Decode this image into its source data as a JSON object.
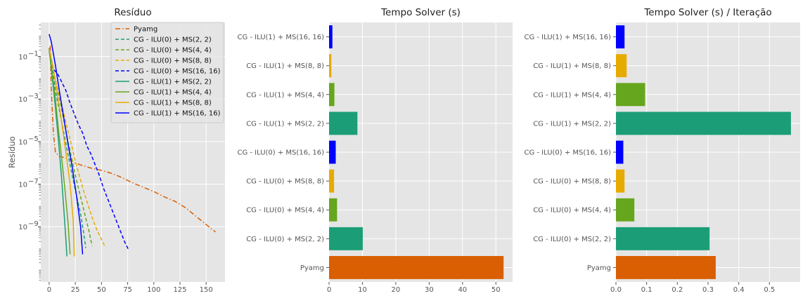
{
  "chart_data": [
    {
      "type": "line",
      "title": "Resíduo",
      "ylabel": "Resíduo",
      "xlabel": "",
      "yscale": "log",
      "xlim": [
        -8,
        168
      ],
      "ylim_log10": [
        -11.6,
        0.6
      ],
      "xticks": [
        0,
        25,
        50,
        75,
        100,
        125,
        150
      ],
      "ytick_labels": [
        {
          "exp": -1,
          "label": "10",
          "sup": "−1"
        },
        {
          "exp": -3,
          "label": "10",
          "sup": "−3"
        },
        {
          "exp": -5,
          "label": "10",
          "sup": "−5"
        },
        {
          "exp": -7,
          "label": "10",
          "sup": "−7"
        },
        {
          "exp": -9,
          "label": "10",
          "sup": "−9"
        }
      ],
      "legend_position": "top-right",
      "series": [
        {
          "name": "Pyamg",
          "color": "#d95f02",
          "dash": "dashdot",
          "points": [
            [
              1,
              -0.5
            ],
            [
              2,
              -2.5
            ],
            [
              4,
              -4.6
            ],
            [
              6,
              -5.5
            ],
            [
              10,
              -5.7
            ],
            [
              15,
              -5.75
            ],
            [
              20,
              -5.85
            ],
            [
              25,
              -6.0
            ],
            [
              30,
              -6.1
            ],
            [
              40,
              -6.25
            ],
            [
              50,
              -6.35
            ],
            [
              60,
              -6.5
            ],
            [
              70,
              -6.7
            ],
            [
              80,
              -6.95
            ],
            [
              90,
              -7.15
            ],
            [
              100,
              -7.35
            ],
            [
              110,
              -7.6
            ],
            [
              120,
              -7.8
            ],
            [
              130,
              -8.1
            ],
            [
              140,
              -8.5
            ],
            [
              150,
              -8.9
            ],
            [
              155,
              -9.1
            ],
            [
              159,
              -9.25
            ]
          ]
        },
        {
          "name": "CG - ILU(0) + MS(2, 2)",
          "color": "#1b9e77",
          "dash": "dashed",
          "points": [
            [
              0,
              -0.6
            ],
            [
              3,
              -1.6
            ],
            [
              6,
              -2.6
            ],
            [
              10,
              -3.6
            ],
            [
              14,
              -4.6
            ],
            [
              18,
              -5.6
            ],
            [
              22,
              -6.6
            ],
            [
              26,
              -7.5
            ],
            [
              30,
              -8.4
            ],
            [
              33,
              -9.3
            ],
            [
              35,
              -10.0
            ]
          ]
        },
        {
          "name": "CG - ILU(0) + MS(4, 4)",
          "color": "#66a61e",
          "dash": "dashed",
          "points": [
            [
              0,
              -0.6
            ],
            [
              3,
              -1.4
            ],
            [
              6,
              -2.2
            ],
            [
              10,
              -3.0
            ],
            [
              14,
              -4.0
            ],
            [
              18,
              -5.0
            ],
            [
              22,
              -5.9
            ],
            [
              26,
              -6.8
            ],
            [
              30,
              -7.6
            ],
            [
              34,
              -8.4
            ],
            [
              38,
              -9.2
            ],
            [
              41,
              -9.9
            ]
          ]
        },
        {
          "name": "CG - ILU(0) + MS(8, 8)",
          "color": "#e6ab02",
          "dash": "dashed",
          "points": [
            [
              0,
              -0.6
            ],
            [
              3,
              -1.4
            ],
            [
              6,
              -2.1
            ],
            [
              10,
              -2.9
            ],
            [
              14,
              -3.7
            ],
            [
              18,
              -4.5
            ],
            [
              22,
              -5.3
            ],
            [
              26,
              -6.1
            ],
            [
              30,
              -6.8
            ],
            [
              34,
              -7.5
            ],
            [
              38,
              -8.1
            ],
            [
              42,
              -8.7
            ],
            [
              46,
              -9.2
            ],
            [
              50,
              -9.6
            ],
            [
              53,
              -9.9
            ]
          ]
        },
        {
          "name": "CG - ILU(0) + MS(16, 16)",
          "color": "#0000ff",
          "dash": "dashed",
          "points": [
            [
              0,
              -0.6
            ],
            [
              4,
              -1.6
            ],
            [
              8,
              -1.8
            ],
            [
              12,
              -2.2
            ],
            [
              16,
              -2.6
            ],
            [
              20,
              -3.2
            ],
            [
              24,
              -3.7
            ],
            [
              28,
              -4.2
            ],
            [
              32,
              -4.6
            ],
            [
              36,
              -5.2
            ],
            [
              40,
              -5.6
            ],
            [
              44,
              -6.1
            ],
            [
              48,
              -6.6
            ],
            [
              52,
              -7.2
            ],
            [
              56,
              -7.7
            ],
            [
              60,
              -8.2
            ],
            [
              64,
              -8.7
            ],
            [
              68,
              -9.2
            ],
            [
              72,
              -9.7
            ],
            [
              76,
              -10.1
            ]
          ]
        },
        {
          "name": "CG - ILU(1) + MS(2, 2)",
          "color": "#1b9e77",
          "dash": "solid",
          "points": [
            [
              0,
              -0.7
            ],
            [
              3,
              -2.0
            ],
            [
              6,
              -3.4
            ],
            [
              9,
              -5.0
            ],
            [
              12,
              -6.8
            ],
            [
              14,
              -8.2
            ],
            [
              16,
              -9.6
            ],
            [
              17,
              -10.4
            ]
          ]
        },
        {
          "name": "CG - ILU(1) + MS(4, 4)",
          "color": "#66a61e",
          "dash": "solid",
          "points": [
            [
              0,
              -0.7
            ],
            [
              3,
              -1.8
            ],
            [
              6,
              -3.0
            ],
            [
              9,
              -4.5
            ],
            [
              12,
              -5.8
            ],
            [
              15,
              -7.2
            ],
            [
              18,
              -8.8
            ],
            [
              20,
              -10.3
            ]
          ]
        },
        {
          "name": "CG - ILU(1) + MS(8, 8)",
          "color": "#e6ab02",
          "dash": "solid",
          "points": [
            [
              0,
              -0.6
            ],
            [
              4,
              -1.6
            ],
            [
              8,
              -2.8
            ],
            [
              12,
              -4.1
            ],
            [
              16,
              -5.5
            ],
            [
              20,
              -7.0
            ],
            [
              23,
              -8.7
            ],
            [
              24,
              -10.4
            ]
          ]
        },
        {
          "name": "CG - ILU(1) + MS(16, 16)",
          "color": "#0000ff",
          "dash": "solid",
          "points": [
            [
              0,
              0.05
            ],
            [
              2,
              -0.3
            ],
            [
              6,
              -1.4
            ],
            [
              10,
              -2.7
            ],
            [
              14,
              -3.9
            ],
            [
              18,
              -5.1
            ],
            [
              22,
              -6.2
            ],
            [
              26,
              -7.5
            ],
            [
              30,
              -9.0
            ],
            [
              32,
              -10.3
            ]
          ]
        }
      ]
    },
    {
      "type": "bar",
      "orientation": "horizontal",
      "title": "Tempo Solver (s)",
      "xlim": [
        0,
        55
      ],
      "xticks": [
        0,
        10,
        20,
        30,
        40,
        50
      ],
      "categories": [
        "Pyamg",
        "CG - ILU(0) + MS(2, 2)",
        "CG - ILU(0) + MS(4, 4)",
        "CG - ILU(0) + MS(8, 8)",
        "CG - ILU(0) + MS(16, 16)",
        "CG - ILU(1) + MS(2, 2)",
        "CG - ILU(1) + MS(4, 4)",
        "CG - ILU(1) + MS(8, 8)",
        "CG - ILU(1) + MS(16, 16)"
      ],
      "values": [
        52.3,
        10.1,
        2.4,
        1.5,
        2.0,
        8.5,
        1.6,
        0.7,
        1.0
      ],
      "colors": [
        "#d95f02",
        "#1b9e77",
        "#66a61e",
        "#e6ab02",
        "#0000ff",
        "#1b9e77",
        "#66a61e",
        "#e6ab02",
        "#0000ff"
      ]
    },
    {
      "type": "bar",
      "orientation": "horizontal",
      "title": "Tempo Solver (s) / Iteração",
      "xlim": [
        0,
        0.6
      ],
      "xticks": [
        0.0,
        0.1,
        0.2,
        0.3,
        0.4,
        0.5
      ],
      "tick_labels": [
        "0.0",
        "0.1",
        "0.2",
        "0.3",
        "0.4",
        "0.5"
      ],
      "categories": [
        "Pyamg",
        "CG - ILU(0) + MS(2, 2)",
        "CG - ILU(0) + MS(4, 4)",
        "CG - ILU(0) + MS(8, 8)",
        "CG - ILU(0) + MS(16, 16)",
        "CG - ILU(1) + MS(2, 2)",
        "CG - ILU(1) + MS(4, 4)",
        "CG - ILU(1) + MS(8, 8)",
        "CG - ILU(1) + MS(16, 16)"
      ],
      "values": [
        0.325,
        0.305,
        0.06,
        0.028,
        0.024,
        0.57,
        0.095,
        0.035,
        0.028
      ],
      "colors": [
        "#d95f02",
        "#1b9e77",
        "#66a61e",
        "#e6ab02",
        "#0000ff",
        "#1b9e77",
        "#66a61e",
        "#e6ab02",
        "#0000ff"
      ]
    }
  ]
}
